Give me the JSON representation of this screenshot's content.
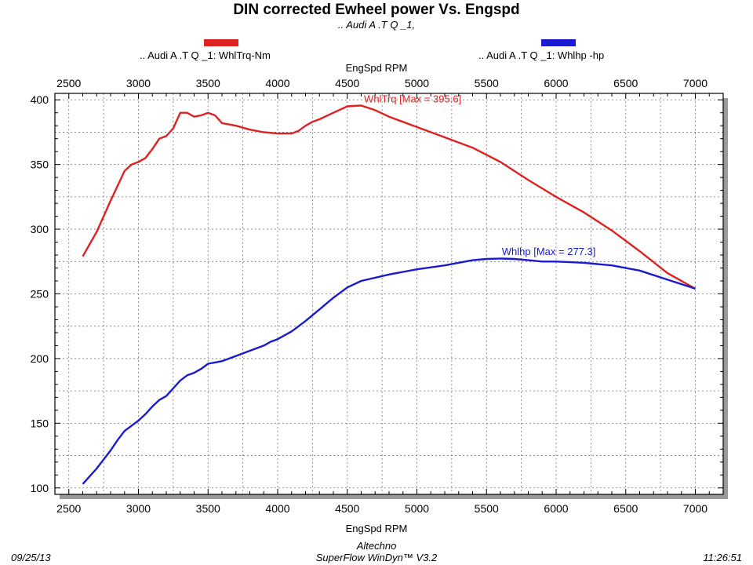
{
  "header": {
    "title": "DIN corrected Ewheel power Vs. Engspd",
    "subtitle": ".. Audi A  .T Q _1,"
  },
  "legend": {
    "torque_label": ".. Audi A  .T Q _1: WhlTrq-Nm",
    "power_label": ".. Audi A  .T Q _1: Whlhp -hp"
  },
  "colors": {
    "torque": "#dd2222",
    "power": "#1a1ad0",
    "grid": "#777777"
  },
  "footer": {
    "date": "09/25/13",
    "company": "Altechno",
    "software": "SuperFlow WinDyn™ V3.2",
    "time": "11:26:51"
  },
  "chart_data": {
    "type": "line",
    "title": "DIN corrected Ewheel power Vs. Engspd",
    "xlabel": "EngSpd RPM",
    "xlabel_top": "EngSpd RPM",
    "ylabel": "",
    "xlim": [
      2400,
      7200
    ],
    "ylim": [
      95,
      405
    ],
    "xticks": [
      "2500",
      "3000",
      "3500",
      "4000",
      "4500",
      "5000",
      "5500",
      "6000",
      "6500",
      "7000"
    ],
    "yticks": [
      "100",
      "150",
      "200",
      "250",
      "300",
      "350",
      "400"
    ],
    "grid": true,
    "series": [
      {
        "name": "WhlTrq-Nm",
        "annotation": "WhlTrq [Max = 395.6]",
        "x": [
          2600,
          2700,
          2800,
          2900,
          2950,
          3000,
          3050,
          3100,
          3150,
          3200,
          3250,
          3300,
          3350,
          3400,
          3450,
          3500,
          3550,
          3600,
          3650,
          3700,
          3800,
          3900,
          4000,
          4100,
          4150,
          4200,
          4250,
          4300,
          4400,
          4500,
          4600,
          4700,
          4800,
          5000,
          5200,
          5400,
          5600,
          5800,
          6000,
          6200,
          6400,
          6600,
          6800,
          7000
        ],
        "values": [
          279,
          298,
          322,
          345,
          350,
          352,
          355,
          362,
          370,
          372,
          378,
          390,
          390,
          387,
          388,
          390,
          388,
          382,
          381,
          380,
          377,
          375,
          374,
          374,
          376,
          380,
          383,
          385,
          390,
          395,
          395.6,
          392,
          387,
          379,
          371,
          363,
          352,
          338,
          325,
          313,
          299,
          283,
          266,
          254
        ]
      },
      {
        "name": "Whlhp -hp",
        "annotation": "Whlhp  [Max = 277.3]",
        "x": [
          2600,
          2700,
          2800,
          2850,
          2900,
          3000,
          3050,
          3100,
          3150,
          3200,
          3300,
          3350,
          3400,
          3450,
          3500,
          3550,
          3600,
          3700,
          3800,
          3900,
          3950,
          4000,
          4100,
          4200,
          4300,
          4400,
          4500,
          4600,
          4800,
          5000,
          5200,
          5400,
          5500,
          5600,
          5700,
          5800,
          5900,
          6000,
          6100,
          6200,
          6400,
          6600,
          6800,
          7000
        ],
        "values": [
          103,
          115,
          129,
          137,
          144,
          152,
          157,
          163,
          168,
          171,
          183,
          187,
          189,
          192,
          196,
          197,
          198,
          202,
          206,
          210,
          213,
          215,
          221,
          229,
          238,
          247,
          255,
          260,
          265,
          269,
          272,
          276,
          277,
          277.3,
          277,
          276,
          275,
          275,
          274.5,
          274,
          272,
          268,
          261,
          254
        ]
      }
    ]
  }
}
